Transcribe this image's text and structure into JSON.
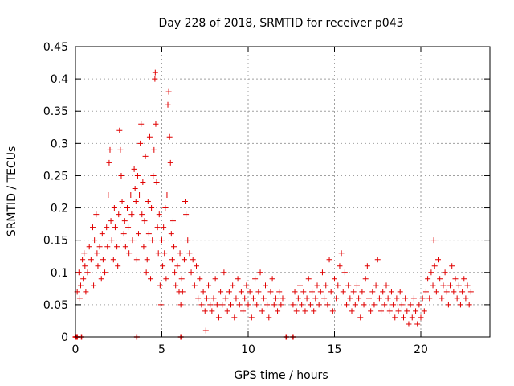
{
  "chart_data": {
    "type": "scatter",
    "title": "Day 228 of 2018, SRMTID for receiver p043",
    "xlabel": "GPS time / hours",
    "ylabel": "SRMTID / TECUs",
    "xlim": [
      0,
      24
    ],
    "ylim": [
      0,
      0.45
    ],
    "xticks": [
      0,
      5,
      10,
      15,
      20
    ],
    "xtick_labels": [
      "0",
      "5",
      "10",
      "15",
      "20"
    ],
    "yticks": [
      0,
      0.05,
      0.1,
      0.15,
      0.2,
      0.25,
      0.3,
      0.35,
      0.4,
      0.45
    ],
    "ytick_labels": [
      "0",
      "0.05",
      "0.1",
      "0.15",
      "0.2",
      "0.25",
      "0.3",
      "0.35",
      "0.4",
      "0.45"
    ],
    "grid": true,
    "marker": "+",
    "color": "#e00000",
    "series": [
      {
        "name": "SRMTID p043",
        "points": [
          [
            0.1,
            0.07
          ],
          [
            0.2,
            0.1
          ],
          [
            0.25,
            0.06
          ],
          [
            0.3,
            0.08
          ],
          [
            0.4,
            0.12
          ],
          [
            0.45,
            0.09
          ],
          [
            0.5,
            0.13
          ],
          [
            0.55,
            0.11
          ],
          [
            0.6,
            0.07
          ],
          [
            0.7,
            0.1
          ],
          [
            0.8,
            0.14
          ],
          [
            0.9,
            0.12
          ],
          [
            1.0,
            0.17
          ],
          [
            1.05,
            0.08
          ],
          [
            1.1,
            0.15
          ],
          [
            1.2,
            0.19
          ],
          [
            1.25,
            0.13
          ],
          [
            1.3,
            0.11
          ],
          [
            1.4,
            0.14
          ],
          [
            1.5,
            0.09
          ],
          [
            1.55,
            0.16
          ],
          [
            1.6,
            0.12
          ],
          [
            1.7,
            0.1
          ],
          [
            1.8,
            0.17
          ],
          [
            1.85,
            0.14
          ],
          [
            1.9,
            0.22
          ],
          [
            1.95,
            0.27
          ],
          [
            2.0,
            0.29
          ],
          [
            2.05,
            0.18
          ],
          [
            2.1,
            0.15
          ],
          [
            2.2,
            0.12
          ],
          [
            2.25,
            0.2
          ],
          [
            2.3,
            0.17
          ],
          [
            2.4,
            0.14
          ],
          [
            2.45,
            0.11
          ],
          [
            2.5,
            0.19
          ],
          [
            2.55,
            0.32
          ],
          [
            2.6,
            0.29
          ],
          [
            2.65,
            0.25
          ],
          [
            2.7,
            0.21
          ],
          [
            2.8,
            0.16
          ],
          [
            2.85,
            0.18
          ],
          [
            2.9,
            0.14
          ],
          [
            3.0,
            0.2
          ],
          [
            3.05,
            0.17
          ],
          [
            3.1,
            0.13
          ],
          [
            3.2,
            0.22
          ],
          [
            3.25,
            0.19
          ],
          [
            3.3,
            0.15
          ],
          [
            3.4,
            0.26
          ],
          [
            3.45,
            0.23
          ],
          [
            3.5,
            0.21
          ],
          [
            3.55,
            0.12
          ],
          [
            3.6,
            0.25
          ],
          [
            3.65,
            0.16
          ],
          [
            3.7,
            0.22
          ],
          [
            3.75,
            0.3
          ],
          [
            3.8,
            0.33
          ],
          [
            3.85,
            0.19
          ],
          [
            3.9,
            0.24
          ],
          [
            3.95,
            0.14
          ],
          [
            4.0,
            0.18
          ],
          [
            4.05,
            0.28
          ],
          [
            4.1,
            0.1
          ],
          [
            4.15,
            0.12
          ],
          [
            4.2,
            0.21
          ],
          [
            4.25,
            0.16
          ],
          [
            4.3,
            0.31
          ],
          [
            4.35,
            0.09
          ],
          [
            4.4,
            0.2
          ],
          [
            4.45,
            0.15
          ],
          [
            4.5,
            0.25
          ],
          [
            4.55,
            0.29
          ],
          [
            4.6,
            0.4
          ],
          [
            4.62,
            0.41
          ],
          [
            4.65,
            0.33
          ],
          [
            4.7,
            0.24
          ],
          [
            4.75,
            0.17
          ],
          [
            4.8,
            0.13
          ],
          [
            4.85,
            0.19
          ],
          [
            4.9,
            0.08
          ],
          [
            4.95,
            0.05
          ],
          [
            5.0,
            0.15
          ],
          [
            5.05,
            0.11
          ],
          [
            5.1,
            0.17
          ],
          [
            5.15,
            0.13
          ],
          [
            5.2,
            0.2
          ],
          [
            5.25,
            0.09
          ],
          [
            5.3,
            0.22
          ],
          [
            5.35,
            0.36
          ],
          [
            5.4,
            0.38
          ],
          [
            5.45,
            0.31
          ],
          [
            5.5,
            0.27
          ],
          [
            5.55,
            0.16
          ],
          [
            5.6,
            0.12
          ],
          [
            5.65,
            0.18
          ],
          [
            5.7,
            0.14
          ],
          [
            5.75,
            0.1
          ],
          [
            5.8,
            0.08
          ],
          [
            5.9,
            0.11
          ],
          [
            6.0,
            0.07
          ],
          [
            6.05,
            0.13
          ],
          [
            6.1,
            0.05
          ],
          [
            6.15,
            0.09
          ],
          [
            6.2,
            0.07
          ],
          [
            6.3,
            0.12
          ],
          [
            6.35,
            0.21
          ],
          [
            6.4,
            0.19
          ],
          [
            6.5,
            0.15
          ],
          [
            6.6,
            0.13
          ],
          [
            6.7,
            0.1
          ],
          [
            6.8,
            0.12
          ],
          [
            6.9,
            0.08
          ],
          [
            7.0,
            0.11
          ],
          [
            7.1,
            0.06
          ],
          [
            7.2,
            0.09
          ],
          [
            7.3,
            0.05
          ],
          [
            7.4,
            0.07
          ],
          [
            7.5,
            0.04
          ],
          [
            7.55,
            0.01
          ],
          [
            7.6,
            0.06
          ],
          [
            7.7,
            0.08
          ],
          [
            7.8,
            0.05
          ],
          [
            7.9,
            0.04
          ],
          [
            8.0,
            0.06
          ],
          [
            8.1,
            0.09
          ],
          [
            8.2,
            0.05
          ],
          [
            8.3,
            0.03
          ],
          [
            8.4,
            0.07
          ],
          [
            8.5,
            0.05
          ],
          [
            8.6,
            0.1
          ],
          [
            8.7,
            0.06
          ],
          [
            8.8,
            0.04
          ],
          [
            8.9,
            0.07
          ],
          [
            9.0,
            0.05
          ],
          [
            9.1,
            0.08
          ],
          [
            9.2,
            0.03
          ],
          [
            9.3,
            0.06
          ],
          [
            9.4,
            0.09
          ],
          [
            9.5,
            0.05
          ],
          [
            9.6,
            0.07
          ],
          [
            9.7,
            0.04
          ],
          [
            9.8,
            0.06
          ],
          [
            9.9,
            0.08
          ],
          [
            10.0,
            0.05
          ],
          [
            10.1,
            0.07
          ],
          [
            10.2,
            0.03
          ],
          [
            10.3,
            0.06
          ],
          [
            10.4,
            0.09
          ],
          [
            10.5,
            0.05
          ],
          [
            10.6,
            0.07
          ],
          [
            10.7,
            0.1
          ],
          [
            10.8,
            0.04
          ],
          [
            10.9,
            0.06
          ],
          [
            11.0,
            0.08
          ],
          [
            11.1,
            0.05
          ],
          [
            11.2,
            0.03
          ],
          [
            11.3,
            0.07
          ],
          [
            11.4,
            0.09
          ],
          [
            11.5,
            0.05
          ],
          [
            11.6,
            0.06
          ],
          [
            11.7,
            0.04
          ],
          [
            11.8,
            0.07
          ],
          [
            11.9,
            0.05
          ],
          [
            12.0,
            0.06
          ],
          [
            12.6,
            0.05
          ],
          [
            12.7,
            0.07
          ],
          [
            12.8,
            0.04
          ],
          [
            12.9,
            0.06
          ],
          [
            13.0,
            0.08
          ],
          [
            13.1,
            0.05
          ],
          [
            13.2,
            0.07
          ],
          [
            13.3,
            0.04
          ],
          [
            13.4,
            0.06
          ],
          [
            13.5,
            0.09
          ],
          [
            13.6,
            0.05
          ],
          [
            13.7,
            0.07
          ],
          [
            13.8,
            0.04
          ],
          [
            13.9,
            0.06
          ],
          [
            14.0,
            0.08
          ],
          [
            14.1,
            0.05
          ],
          [
            14.2,
            0.07
          ],
          [
            14.3,
            0.1
          ],
          [
            14.4,
            0.06
          ],
          [
            14.5,
            0.08
          ],
          [
            14.6,
            0.05
          ],
          [
            14.7,
            0.12
          ],
          [
            14.8,
            0.07
          ],
          [
            14.9,
            0.04
          ],
          [
            15.0,
            0.09
          ],
          [
            15.1,
            0.06
          ],
          [
            15.2,
            0.08
          ],
          [
            15.3,
            0.11
          ],
          [
            15.4,
            0.13
          ],
          [
            15.5,
            0.07
          ],
          [
            15.6,
            0.1
          ],
          [
            15.7,
            0.05
          ],
          [
            15.8,
            0.08
          ],
          [
            15.9,
            0.06
          ],
          [
            16.0,
            0.04
          ],
          [
            16.1,
            0.07
          ],
          [
            16.2,
            0.05
          ],
          [
            16.3,
            0.08
          ],
          [
            16.4,
            0.06
          ],
          [
            16.5,
            0.03
          ],
          [
            16.6,
            0.07
          ],
          [
            16.7,
            0.05
          ],
          [
            16.8,
            0.09
          ],
          [
            16.9,
            0.11
          ],
          [
            17.0,
            0.06
          ],
          [
            17.1,
            0.04
          ],
          [
            17.2,
            0.07
          ],
          [
            17.3,
            0.05
          ],
          [
            17.4,
            0.08
          ],
          [
            17.5,
            0.12
          ],
          [
            17.6,
            0.06
          ],
          [
            17.7,
            0.04
          ],
          [
            17.8,
            0.07
          ],
          [
            17.9,
            0.05
          ],
          [
            18.0,
            0.08
          ],
          [
            18.1,
            0.06
          ],
          [
            18.2,
            0.04
          ],
          [
            18.3,
            0.07
          ],
          [
            18.4,
            0.05
          ],
          [
            18.5,
            0.03
          ],
          [
            18.6,
            0.06
          ],
          [
            18.7,
            0.04
          ],
          [
            18.8,
            0.07
          ],
          [
            18.9,
            0.05
          ],
          [
            19.0,
            0.03
          ],
          [
            19.1,
            0.06
          ],
          [
            19.2,
            0.04
          ],
          [
            19.3,
            0.02
          ],
          [
            19.4,
            0.05
          ],
          [
            19.5,
            0.03
          ],
          [
            19.6,
            0.06
          ],
          [
            19.7,
            0.04
          ],
          [
            19.8,
            0.02
          ],
          [
            19.9,
            0.05
          ],
          [
            20.0,
            0.03
          ],
          [
            20.1,
            0.06
          ],
          [
            20.2,
            0.04
          ],
          [
            20.3,
            0.07
          ],
          [
            20.4,
            0.09
          ],
          [
            20.5,
            0.06
          ],
          [
            20.6,
            0.1
          ],
          [
            20.7,
            0.08
          ],
          [
            20.75,
            0.15
          ],
          [
            20.8,
            0.11
          ],
          [
            20.9,
            0.07
          ],
          [
            21.0,
            0.12
          ],
          [
            21.1,
            0.09
          ],
          [
            21.2,
            0.06
          ],
          [
            21.3,
            0.08
          ],
          [
            21.4,
            0.1
          ],
          [
            21.5,
            0.07
          ],
          [
            21.6,
            0.05
          ],
          [
            21.7,
            0.08
          ],
          [
            21.8,
            0.11
          ],
          [
            21.9,
            0.07
          ],
          [
            22.0,
            0.09
          ],
          [
            22.1,
            0.06
          ],
          [
            22.2,
            0.08
          ],
          [
            22.3,
            0.05
          ],
          [
            22.4,
            0.07
          ],
          [
            22.5,
            0.09
          ],
          [
            22.6,
            0.06
          ],
          [
            22.7,
            0.08
          ],
          [
            22.8,
            0.05
          ],
          [
            22.9,
            0.07
          ]
        ]
      }
    ],
    "zero_markers": [
      0.0,
      0.05,
      0.1,
      0.35,
      3.55,
      6.1,
      12.2,
      12.6
    ]
  }
}
